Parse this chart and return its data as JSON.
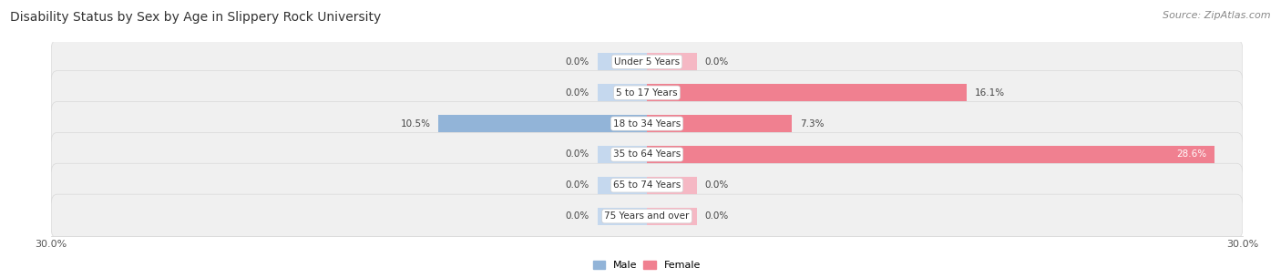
{
  "title": "Disability Status by Sex by Age in Slippery Rock University",
  "source": "Source: ZipAtlas.com",
  "categories": [
    "Under 5 Years",
    "5 to 17 Years",
    "18 to 34 Years",
    "35 to 64 Years",
    "65 to 74 Years",
    "75 Years and over"
  ],
  "male_values": [
    0.0,
    0.0,
    10.5,
    0.0,
    0.0,
    0.0
  ],
  "female_values": [
    0.0,
    16.1,
    7.3,
    28.6,
    0.0,
    0.0
  ],
  "male_color": "#92b4d8",
  "female_color": "#f08090",
  "male_color_light": "#c5d8ee",
  "female_color_light": "#f5b8c4",
  "male_label": "Male",
  "female_label": "Female",
  "xlim": [
    -30,
    30
  ],
  "background_color": "#ffffff",
  "row_color": "#f0f0f0",
  "title_fontsize": 10,
  "source_fontsize": 8,
  "label_fontsize": 7.5,
  "bar_height": 0.55,
  "stub_value": 2.5
}
